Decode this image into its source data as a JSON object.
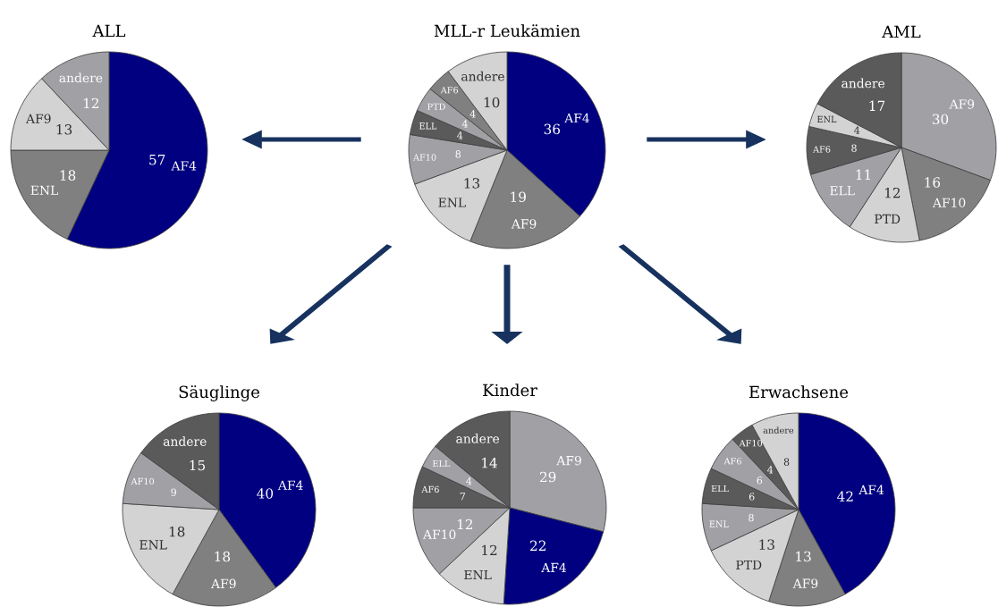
{
  "chart_data": [
    {
      "type": "pie",
      "title": "ALL",
      "categories": [
        "AF4",
        "ENL",
        "AF9",
        "andere"
      ],
      "values": [
        57,
        18,
        13,
        12
      ],
      "colors": [
        "#000080",
        "#808080",
        "#d3d3d3",
        "#a0a0a5"
      ],
      "data_labels": true
    },
    {
      "type": "pie",
      "title": "MLL-r Leukämien",
      "categories": [
        "AF4",
        "AF9",
        "ENL",
        "AF10",
        "ELL",
        "PTD",
        "AF6",
        "andere"
      ],
      "values": [
        36,
        19,
        13,
        8,
        4,
        4,
        4,
        10
      ],
      "colors": [
        "#000080",
        "#808080",
        "#d3d3d3",
        "#a0a0a5",
        "#5a5a5a",
        "#a0a0a5",
        "#808080",
        "#d3d3d3"
      ],
      "data_labels": true
    },
    {
      "type": "pie",
      "title": "AML",
      "categories": [
        "AF9",
        "AF10",
        "PTD",
        "ELL",
        "AF6",
        "ENL",
        "andere"
      ],
      "values": [
        30,
        16,
        12,
        11,
        8,
        4,
        17
      ],
      "colors": [
        "#a0a0a5",
        "#808080",
        "#d3d3d3",
        "#a0a0a5",
        "#5a5a5a",
        "#d3d3d3",
        "#5a5a5a"
      ],
      "data_labels": true
    },
    {
      "type": "pie",
      "title": "Säuglinge",
      "categories": [
        "AF4",
        "AF9",
        "ENL",
        "AF10",
        "andere"
      ],
      "values": [
        40,
        18,
        18,
        9,
        15
      ],
      "colors": [
        "#000080",
        "#808080",
        "#d3d3d3",
        "#a0a0a5",
        "#5a5a5a"
      ],
      "data_labels": true
    },
    {
      "type": "pie",
      "title": "Kinder",
      "categories": [
        "AF9",
        "AF4",
        "ENL",
        "AF10",
        "AF6",
        "ELL",
        "andere"
      ],
      "values": [
        29,
        22,
        12,
        12,
        7,
        4,
        14
      ],
      "colors": [
        "#a0a0a5",
        "#000080",
        "#d3d3d3",
        "#a0a0a5",
        "#5a5a5a",
        "#a0a0a5",
        "#5a5a5a"
      ],
      "data_labels": true
    },
    {
      "type": "pie",
      "title": "Erwachsene",
      "categories": [
        "AF4",
        "AF9",
        "PTD",
        "ENL",
        "ELL",
        "AF6",
        "AF10",
        "andere"
      ],
      "values": [
        42,
        13,
        13,
        8,
        6,
        6,
        4,
        8
      ],
      "colors": [
        "#000080",
        "#808080",
        "#d3d3d3",
        "#a0a0a5",
        "#5a5a5a",
        "#a0a0a5",
        "#5a5a5a",
        "#d3d3d3"
      ],
      "data_labels": true
    }
  ]
}
